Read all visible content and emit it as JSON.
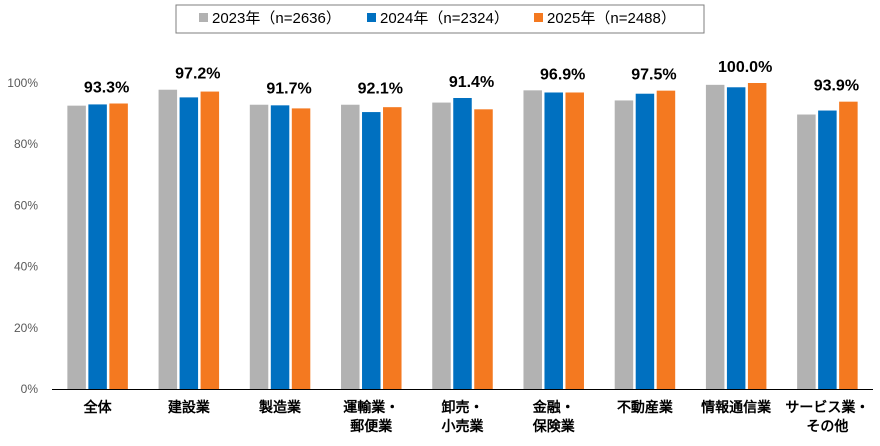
{
  "chart_data": {
    "type": "bar",
    "categories": [
      [
        "全体"
      ],
      [
        "建設業"
      ],
      [
        "製造業"
      ],
      [
        "運輸業・",
        "郵便業"
      ],
      [
        "卸売・",
        "小売業"
      ],
      [
        "金融・",
        "保険業"
      ],
      [
        "不動産業"
      ],
      [
        "情報通信業"
      ],
      [
        "サービス業・",
        "その他"
      ]
    ],
    "series": [
      {
        "name": "2023年（n=2636）",
        "color": "#b2b2b2",
        "values": [
          92.6,
          97.8,
          92.9,
          92.9,
          93.6,
          97.6,
          94.3,
          99.4,
          89.7
        ]
      },
      {
        "name": "2024年（n=2324）",
        "color": "#0070c0",
        "values": [
          93.0,
          95.3,
          92.7,
          90.5,
          95.1,
          96.9,
          96.5,
          98.6,
          91.0
        ]
      },
      {
        "name": "2025年（n=2488）",
        "color": "#f47920",
        "values": [
          93.3,
          97.2,
          91.7,
          92.1,
          91.4,
          96.9,
          97.5,
          100.0,
          93.9
        ]
      }
    ],
    "data_labels": [
      "93.3%",
      "97.2%",
      "91.7%",
      "92.1%",
      "91.4%",
      "96.9%",
      "97.5%",
      "100.0%",
      "93.9%"
    ],
    "data_label_series": 2,
    "y_ticks": [
      "0%",
      "20%",
      "40%",
      "60%",
      "80%",
      "100%"
    ],
    "ylim": [
      0,
      100
    ],
    "legend_position": "top-center",
    "grid": false,
    "xlabel": "",
    "ylabel": ""
  }
}
